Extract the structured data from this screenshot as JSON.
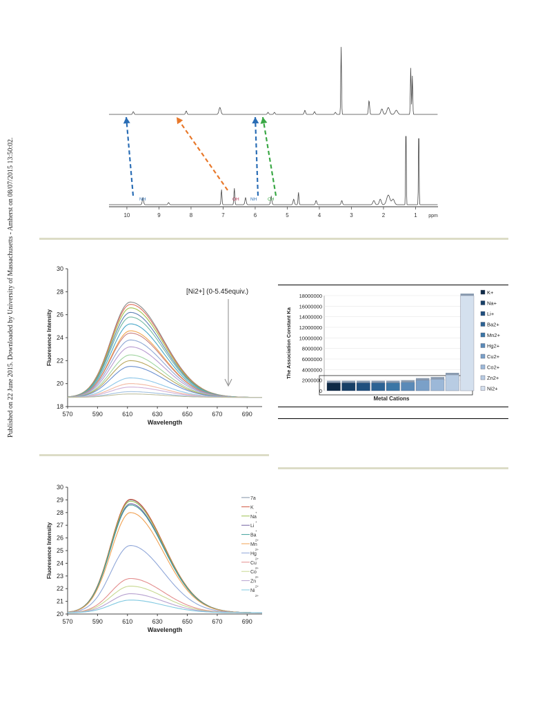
{
  "sidebar": {
    "text": "Published on 22 June 2015. Downloaded by University of Massachusetts - Amherst on 08/07/2015 13:50:02."
  },
  "nmr": {
    "axis_ticks": [
      "10",
      "9",
      "8",
      "7",
      "6",
      "5",
      "4",
      "3",
      "2",
      "1"
    ],
    "axis_unit": "ppm",
    "labels": {
      "nh1": "NH",
      "oh": "OH",
      "nh2": "NH",
      "ch": "CH"
    },
    "colors": {
      "nh": "#2a6db5",
      "oh": "#e8782a",
      "ch": "#3aa845"
    }
  },
  "chart_data": [
    {
      "type": "line",
      "xlabel": "Wavelength",
      "ylabel": "Fluoresence Intensity",
      "annotation": "[Ni2+] (0-5.45equiv.)",
      "xlim": [
        570,
        700
      ],
      "ylim": [
        18,
        30
      ],
      "xticks": [
        570,
        590,
        610,
        630,
        650,
        670,
        690
      ],
      "yticks": [
        18,
        20,
        22,
        24,
        26,
        28,
        30
      ],
      "peak_x": 612,
      "baseline": 18.8,
      "peaks": [
        27.1,
        26.9,
        26.6,
        26.2,
        25.8,
        25.2,
        24.6,
        24.4,
        23.8,
        23.2,
        22.5,
        22.0,
        21.5,
        20.5,
        20.0,
        19.7,
        19.3,
        19.1
      ],
      "colors": [
        "#8a8a8a",
        "#e06c5a",
        "#9fc24a",
        "#5b7fb3",
        "#6fb8a0",
        "#46a6c8",
        "#f0a44a",
        "#c97f7f",
        "#8fa8d4",
        "#b89bd0",
        "#9fd49f",
        "#b7a55a",
        "#6a8fcf",
        "#8cc6e8",
        "#f2b8a0",
        "#d0b0d8",
        "#a0c0e0",
        "#c0c0a0"
      ]
    },
    {
      "type": "bar",
      "ylabel": "The Association Constant Ka",
      "xlabel": "Metal Cations",
      "ylim": [
        0,
        18000000
      ],
      "yticks": [
        "0",
        "2000000",
        "4000000",
        "6000000",
        "8000000",
        "10000000",
        "12000000",
        "14000000",
        "16000000",
        "18000000"
      ],
      "series": [
        {
          "name": "K+",
          "value": 1500000,
          "color": "#0e2a47"
        },
        {
          "name": "Na+",
          "value": 1500000,
          "color": "#173f66"
        },
        {
          "name": "Li+",
          "value": 1500000,
          "color": "#1f4f7e"
        },
        {
          "name": "Ba2+",
          "value": 1500000,
          "color": "#2c6394"
        },
        {
          "name": "Mn2+",
          "value": 1500000,
          "color": "#3b76a6"
        },
        {
          "name": "Hg2+",
          "value": 1600000,
          "color": "#5a8ab8"
        },
        {
          "name": "Cu2+",
          "value": 2000000,
          "color": "#7aa0c8"
        },
        {
          "name": "Co2+",
          "value": 2200000,
          "color": "#9cb8d8"
        },
        {
          "name": "Zn2+",
          "value": 3000000,
          "color": "#b8cce3"
        },
        {
          "name": "Ni2+",
          "value": 18000000,
          "color": "#d4e0ee"
        }
      ]
    },
    {
      "type": "line",
      "xlabel": "Wavelength",
      "ylabel": "Fluoresence Intensity",
      "xlim": [
        570,
        700
      ],
      "ylim": [
        20,
        30
      ],
      "xticks": [
        570,
        590,
        610,
        630,
        650,
        670,
        690
      ],
      "yticks": [
        20,
        21,
        22,
        23,
        24,
        25,
        26,
        27,
        28,
        29,
        30
      ],
      "peak_x": 612,
      "baseline": 20.1,
      "series": [
        {
          "name": "7a",
          "peak": 29.0,
          "color": "#7f8fa6"
        },
        {
          "name": "K",
          "sup": "+",
          "peak": 29.05,
          "color": "#d0543c"
        },
        {
          "name": "Na",
          "sup": "+",
          "peak": 28.9,
          "color": "#9cbf4e"
        },
        {
          "name": "Li",
          "sup": "+",
          "peak": 28.7,
          "color": "#6f5fa0"
        },
        {
          "name": "Ba",
          "sup": "2+",
          "peak": 28.6,
          "color": "#3e9e9a"
        },
        {
          "name": "Mn",
          "sup": "2+",
          "peak": 28.0,
          "color": "#f0a050"
        },
        {
          "name": "Hg",
          "sup": "2+",
          "peak": 25.4,
          "color": "#8fa6d8"
        },
        {
          "name": "Cu",
          "sup": "2+",
          "peak": 22.8,
          "color": "#e38c8c"
        },
        {
          "name": "Co",
          "sup": "2+",
          "peak": 22.2,
          "color": "#c7d890"
        },
        {
          "name": "Zn",
          "sup": "2+",
          "peak": 21.6,
          "color": "#b6a0cf"
        },
        {
          "name": "Ni",
          "sup": "2+",
          "peak": 21.1,
          "color": "#7fc8e0"
        }
      ]
    }
  ]
}
